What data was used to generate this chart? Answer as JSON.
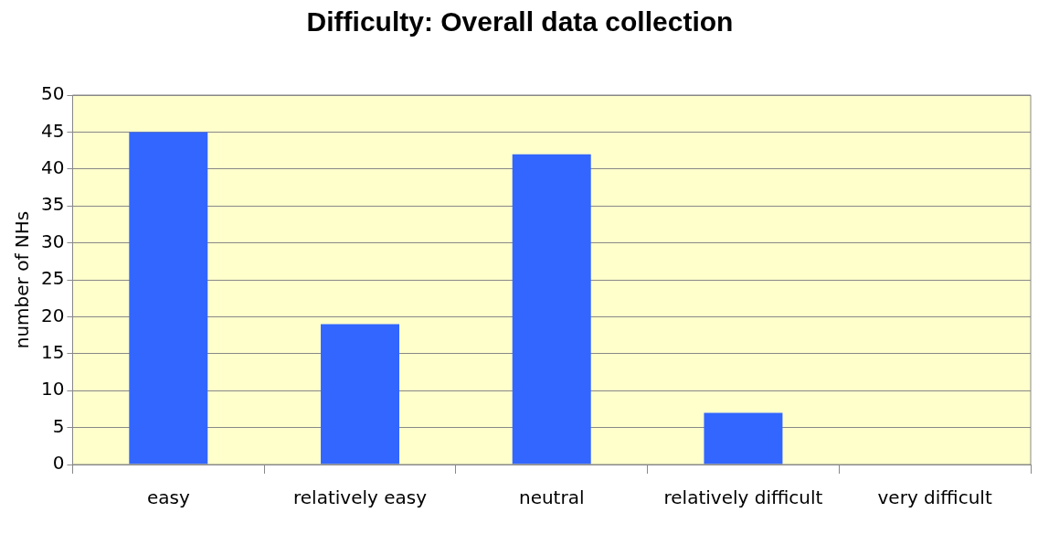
{
  "chart_data": {
    "type": "bar",
    "title": "Difficulty: Overall data collection",
    "ylabel": "number of NHs",
    "categories": [
      "easy",
      "relatively easy",
      "neutral",
      "relatively difficult",
      "very difficult"
    ],
    "values": [
      45,
      19,
      42,
      7,
      0
    ],
    "color": "#3366ff",
    "ylim": [
      0,
      50
    ],
    "yticks": [
      0,
      5,
      10,
      15,
      20,
      25,
      30,
      35,
      40,
      45,
      50
    ],
    "grid": "y"
  }
}
